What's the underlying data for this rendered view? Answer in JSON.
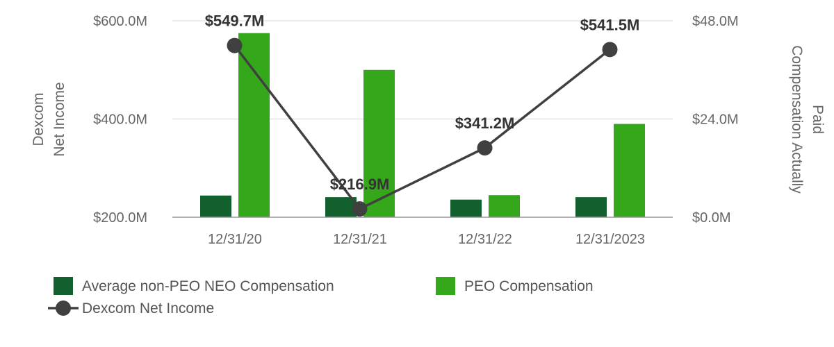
{
  "chart_data": {
    "type": "bar",
    "categories": [
      "12/31/20",
      "12/31/21",
      "12/31/22",
      "12/31/2023"
    ],
    "left_axis": {
      "title_lines": [
        "Dexcom",
        "Net Income"
      ],
      "min": 200,
      "max": 600,
      "ticks": [
        {
          "value": 200,
          "label": "$200.0M"
        },
        {
          "value": 400,
          "label": "$400.0M"
        },
        {
          "value": 600,
          "label": "$600.0M"
        }
      ]
    },
    "right_axis": {
      "title_lines": [
        "Compensation Actually",
        "Paid"
      ],
      "min": 0,
      "max": 48,
      "ticks": [
        {
          "value": 0,
          "label": "$0.0M"
        },
        {
          "value": 24,
          "label": "$24.0M"
        },
        {
          "value": 48,
          "label": "$48.0M"
        }
      ]
    },
    "series": [
      {
        "name": "Average non-PEO NEO Compensation",
        "type": "bar",
        "axis": "right",
        "color": "#11602e",
        "values": [
          5.3,
          4.9,
          4.3,
          4.9
        ]
      },
      {
        "name": "PEO Compensation",
        "type": "bar",
        "axis": "right",
        "color": "#34a81a",
        "values": [
          45.0,
          36.0,
          5.4,
          22.8
        ]
      },
      {
        "name": "Dexcom Net Income",
        "type": "line",
        "axis": "left",
        "color": "#404040",
        "values": [
          549.7,
          216.9,
          341.2,
          541.5
        ],
        "labels": [
          "$549.7M",
          "$216.9M",
          "$341.2M",
          "$541.5M"
        ]
      }
    ],
    "grid": true,
    "legend_position": "bottom-left"
  }
}
